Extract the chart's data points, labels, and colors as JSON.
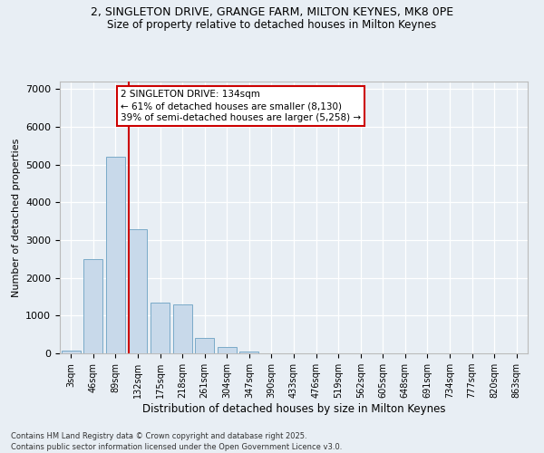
{
  "title_line1": "2, SINGLETON DRIVE, GRANGE FARM, MILTON KEYNES, MK8 0PE",
  "title_line2": "Size of property relative to detached houses in Milton Keynes",
  "xlabel": "Distribution of detached houses by size in Milton Keynes",
  "ylabel": "Number of detached properties",
  "categories": [
    "3sqm",
    "46sqm",
    "89sqm",
    "132sqm",
    "175sqm",
    "218sqm",
    "261sqm",
    "304sqm",
    "347sqm",
    "390sqm",
    "433sqm",
    "476sqm",
    "519sqm",
    "562sqm",
    "605sqm",
    "648sqm",
    "691sqm",
    "734sqm",
    "777sqm",
    "820sqm",
    "863sqm"
  ],
  "values": [
    80,
    2500,
    5200,
    3300,
    1350,
    1300,
    400,
    170,
    60,
    10,
    5,
    2,
    1,
    0,
    0,
    0,
    0,
    0,
    0,
    0,
    0
  ],
  "bar_color": "#c8d9ea",
  "bar_edge_color": "#7aaac8",
  "background_color": "#e8eef4",
  "grid_color": "#ffffff",
  "vline_color": "#cc0000",
  "vline_pos": 3,
  "annotation_text": "2 SINGLETON DRIVE: 134sqm\n← 61% of detached houses are smaller (8,130)\n39% of semi-detached houses are larger (5,258) →",
  "annotation_box_facecolor": "#ffffff",
  "annotation_box_edgecolor": "#cc0000",
  "ylim": [
    0,
    7200
  ],
  "yticks": [
    0,
    1000,
    2000,
    3000,
    4000,
    5000,
    6000,
    7000
  ],
  "footer_line1": "Contains HM Land Registry data © Crown copyright and database right 2025.",
  "footer_line2": "Contains public sector information licensed under the Open Government Licence v3.0."
}
